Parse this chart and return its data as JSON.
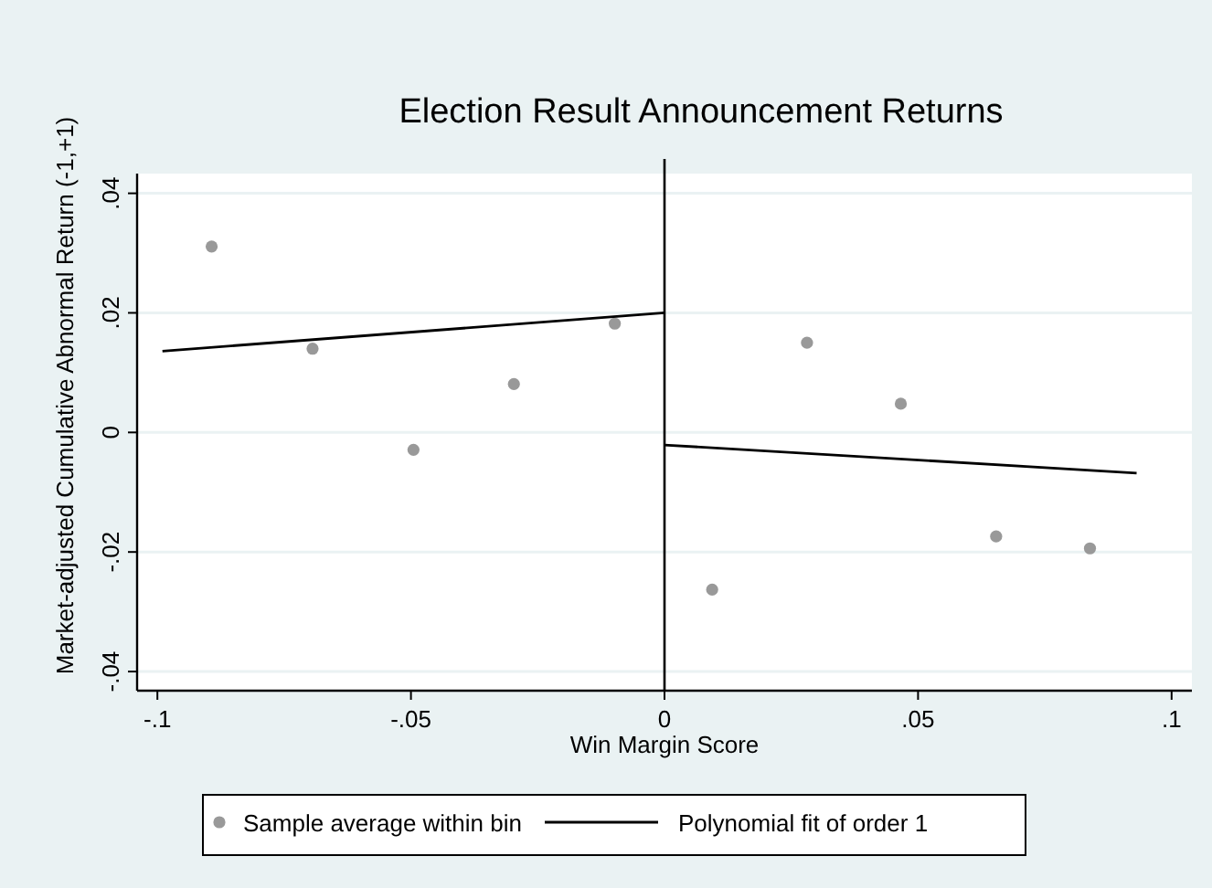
{
  "chart_data": {
    "type": "scatter",
    "title": "Election Result Announcement Returns",
    "xlabel": "Win Margin Score",
    "ylabel": "Market-adjusted Cumulative Abnormal Return (-1,+1)",
    "xlim": [
      -0.104,
      0.104
    ],
    "xticks": [
      {
        "value": -0.1,
        "label": "-.1"
      },
      {
        "value": -0.05,
        "label": "-.05"
      },
      0,
      {
        "value": 0.05,
        "label": ".05"
      },
      {
        "value": 0.1,
        "label": ".1"
      }
    ],
    "ylim": [
      -0.0432,
      0.0433
    ],
    "yticks": [
      {
        "value": -0.04,
        "label": "-.04"
      },
      {
        "value": -0.02,
        "label": "-.02"
      },
      0,
      {
        "value": 0.02,
        "label": ".02"
      },
      {
        "value": 0.04,
        "label": ".04"
      }
    ],
    "grid": "y",
    "legend": "bottom",
    "ref_lines": [
      {
        "axis": "x",
        "value": 0,
        "color": "#000000"
      }
    ],
    "series": [
      {
        "name": "Sample average within bin",
        "color": "#999999",
        "marker": "circle",
        "x": [
          -0.0893,
          -0.0694,
          -0.0495,
          -0.0297,
          -0.0098,
          0.0094,
          0.0281,
          0.0466,
          0.0654,
          0.0839
        ],
        "values": [
          0.0311,
          0.014,
          -0.0029,
          0.0081,
          0.0182,
          -0.0263,
          0.015,
          0.0048,
          -0.0174,
          -0.0194
        ]
      },
      {
        "type": "line",
        "name": "Polynomial fit of order 1",
        "color": "#000000",
        "line_style": "solid",
        "marker": "none",
        "x": [
          -0.099,
          0
        ],
        "values": [
          0.0136,
          0.02
        ]
      },
      {
        "type": "line",
        "color": "#000000",
        "line_style": "solid",
        "marker": "none",
        "x": [
          0,
          0.0931
        ],
        "values": [
          -0.0021,
          -0.0068
        ]
      }
    ]
  }
}
